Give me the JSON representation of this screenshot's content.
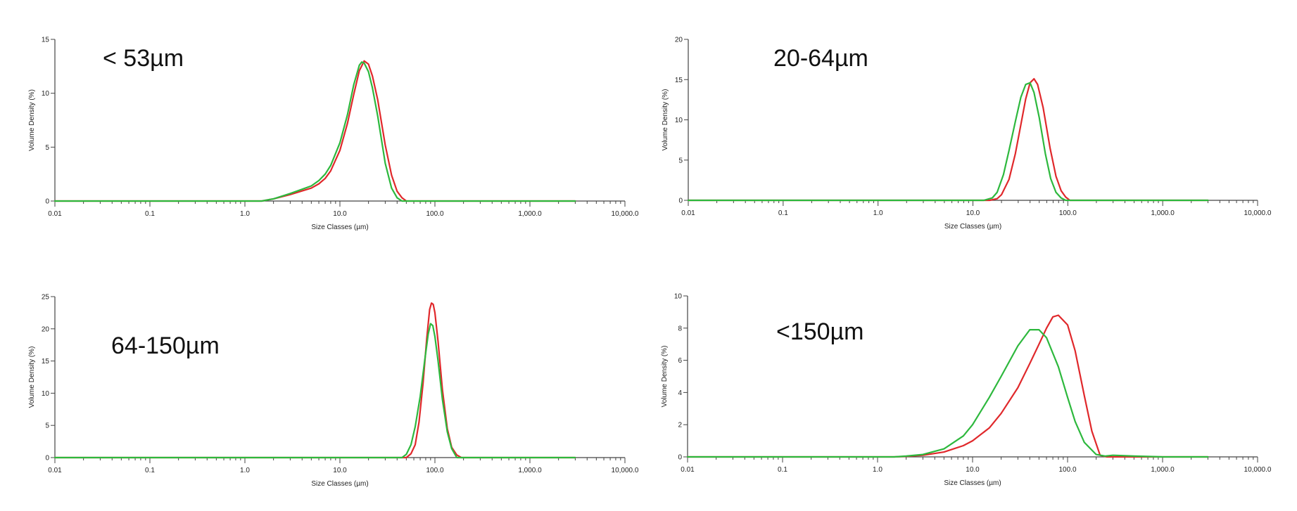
{
  "chart_data": [
    {
      "type": "line",
      "title": "< 53µm",
      "xlabel": "Size Classes (µm)",
      "ylabel": "Volume Density (%)",
      "xscale": "log",
      "xlim": [
        0.01,
        10000
      ],
      "xticks": [
        "0.01",
        "0.1",
        "1.0",
        "10.0",
        "100.0",
        "1,000.0",
        "10,000.0"
      ],
      "ylim": [
        0,
        15
      ],
      "yticks": [
        0,
        5,
        10,
        15
      ],
      "grid": false,
      "series": [
        {
          "color": "#e0282b",
          "x": [
            0.01,
            1.5,
            2,
            3,
            5,
            6,
            7,
            8,
            10,
            12,
            14,
            16,
            18,
            20,
            22,
            25,
            30,
            35,
            40,
            45,
            50,
            3000
          ],
          "y": [
            0,
            0,
            0.2,
            0.6,
            1.2,
            1.6,
            2.1,
            2.8,
            4.7,
            7.2,
            9.9,
            12.1,
            13.0,
            12.7,
            11.6,
            9.4,
            5.2,
            2.4,
            0.9,
            0.3,
            0,
            0
          ]
        },
        {
          "color": "#2db83d",
          "x": [
            0.01,
            1.5,
            2,
            3,
            5,
            6,
            7,
            8,
            10,
            12,
            14,
            16,
            17,
            18,
            20,
            22,
            25,
            30,
            35,
            40,
            45,
            3000
          ],
          "y": [
            0,
            0,
            0.2,
            0.7,
            1.4,
            1.9,
            2.5,
            3.3,
            5.4,
            8.0,
            10.8,
            12.6,
            12.9,
            12.8,
            12.0,
            10.5,
            7.9,
            3.5,
            1.2,
            0.3,
            0,
            0
          ]
        }
      ]
    },
    {
      "type": "line",
      "title": "20-64µm",
      "xlabel": "Size Classes (µm)",
      "ylabel": "Volume Density (%)",
      "xscale": "log",
      "xlim": [
        0.01,
        10000
      ],
      "xticks": [
        "0.01",
        "0.1",
        "1.0",
        "10.0",
        "100.0",
        "1,000.0",
        "10,000.0"
      ],
      "ylim": [
        0,
        20
      ],
      "yticks": [
        0,
        5,
        10,
        15,
        20
      ],
      "grid": false,
      "series": [
        {
          "color": "#e0282b",
          "x": [
            0.01,
            15,
            18,
            20,
            24,
            28,
            32,
            36,
            40,
            44,
            48,
            55,
            65,
            75,
            85,
            95,
            105,
            3000
          ],
          "y": [
            0,
            0,
            0.2,
            0.7,
            2.6,
            5.8,
            9.4,
            12.6,
            14.6,
            15.1,
            14.4,
            11.5,
            6.5,
            3.0,
            1.2,
            0.4,
            0,
            0
          ]
        },
        {
          "color": "#2db83d",
          "x": [
            0.01,
            13,
            16,
            18,
            21,
            24,
            28,
            32,
            36,
            40,
            44,
            50,
            58,
            66,
            75,
            85,
            95,
            3000
          ],
          "y": [
            0,
            0,
            0.3,
            1.0,
            3.2,
            6.2,
            9.8,
            12.8,
            14.4,
            14.6,
            13.4,
            10.3,
            5.8,
            2.7,
            1.0,
            0.3,
            0,
            0
          ]
        }
      ]
    },
    {
      "type": "line",
      "title": "64-150µm",
      "xlabel": "Size Classes (µm)",
      "ylabel": "Volume Density (%)",
      "xscale": "log",
      "xlim": [
        0.01,
        10000
      ],
      "xticks": [
        "0.01",
        "0.1",
        "1.0",
        "10.0",
        "100.0",
        "1,000.0",
        "10,000.0"
      ],
      "ylim": [
        0,
        25
      ],
      "yticks": [
        0,
        5,
        10,
        15,
        20,
        25
      ],
      "grid": false,
      "series": [
        {
          "color": "#e0282b",
          "x": [
            0.01,
            50,
            56,
            62,
            68,
            75,
            82,
            88,
            92,
            96,
            100,
            108,
            120,
            135,
            150,
            170,
            190,
            3000
          ],
          "y": [
            0,
            0,
            0.6,
            2.0,
            5.5,
            11.5,
            18.5,
            23.0,
            24.0,
            23.8,
            22.5,
            18.0,
            10.5,
            4.5,
            1.6,
            0.4,
            0,
            0
          ]
        },
        {
          "color": "#2db83d",
          "x": [
            0.01,
            45,
            50,
            56,
            62,
            70,
            78,
            85,
            90,
            95,
            100,
            108,
            120,
            135,
            150,
            170,
            3000
          ],
          "y": [
            0,
            0,
            0.5,
            2.0,
            4.8,
            9.5,
            15.0,
            19.2,
            20.8,
            20.5,
            18.8,
            15.0,
            9.0,
            4.0,
            1.4,
            0,
            0
          ]
        }
      ]
    },
    {
      "type": "line",
      "title": "<150µm",
      "xlabel": "Size Classes (µm)",
      "ylabel": "Volume Density (%)",
      "xscale": "log",
      "xlim": [
        0.01,
        10000
      ],
      "xticks": [
        "0.01",
        "0.1",
        "1.0",
        "10.0",
        "100.0",
        "1,000.0",
        "10,000.0"
      ],
      "ylim": [
        0,
        10
      ],
      "yticks": [
        0,
        2,
        4,
        6,
        8,
        10
      ],
      "grid": false,
      "series": [
        {
          "color": "#e0282b",
          "x": [
            0.01,
            1.5,
            2,
            3,
            5,
            8,
            10,
            15,
            20,
            30,
            40,
            50,
            60,
            70,
            80,
            100,
            120,
            150,
            180,
            220,
            260,
            3000
          ],
          "y": [
            0,
            0,
            0.03,
            0.1,
            0.3,
            0.7,
            1.0,
            1.8,
            2.7,
            4.3,
            5.8,
            7.0,
            8.0,
            8.7,
            8.8,
            8.2,
            6.6,
            3.8,
            1.6,
            0.1,
            0,
            0
          ]
        },
        {
          "color": "#2db83d",
          "x": [
            0.01,
            1.5,
            2,
            3,
            5,
            8,
            10,
            15,
            20,
            30,
            40,
            50,
            60,
            80,
            100,
            120,
            150,
            200,
            250,
            300,
            500,
            1000,
            3000
          ],
          "y": [
            0,
            0,
            0.05,
            0.15,
            0.5,
            1.3,
            2.0,
            3.7,
            5.0,
            6.9,
            7.9,
            7.9,
            7.4,
            5.6,
            3.7,
            2.2,
            0.9,
            0.15,
            0.05,
            0.1,
            0.05,
            0,
            0
          ]
        }
      ]
    }
  ]
}
